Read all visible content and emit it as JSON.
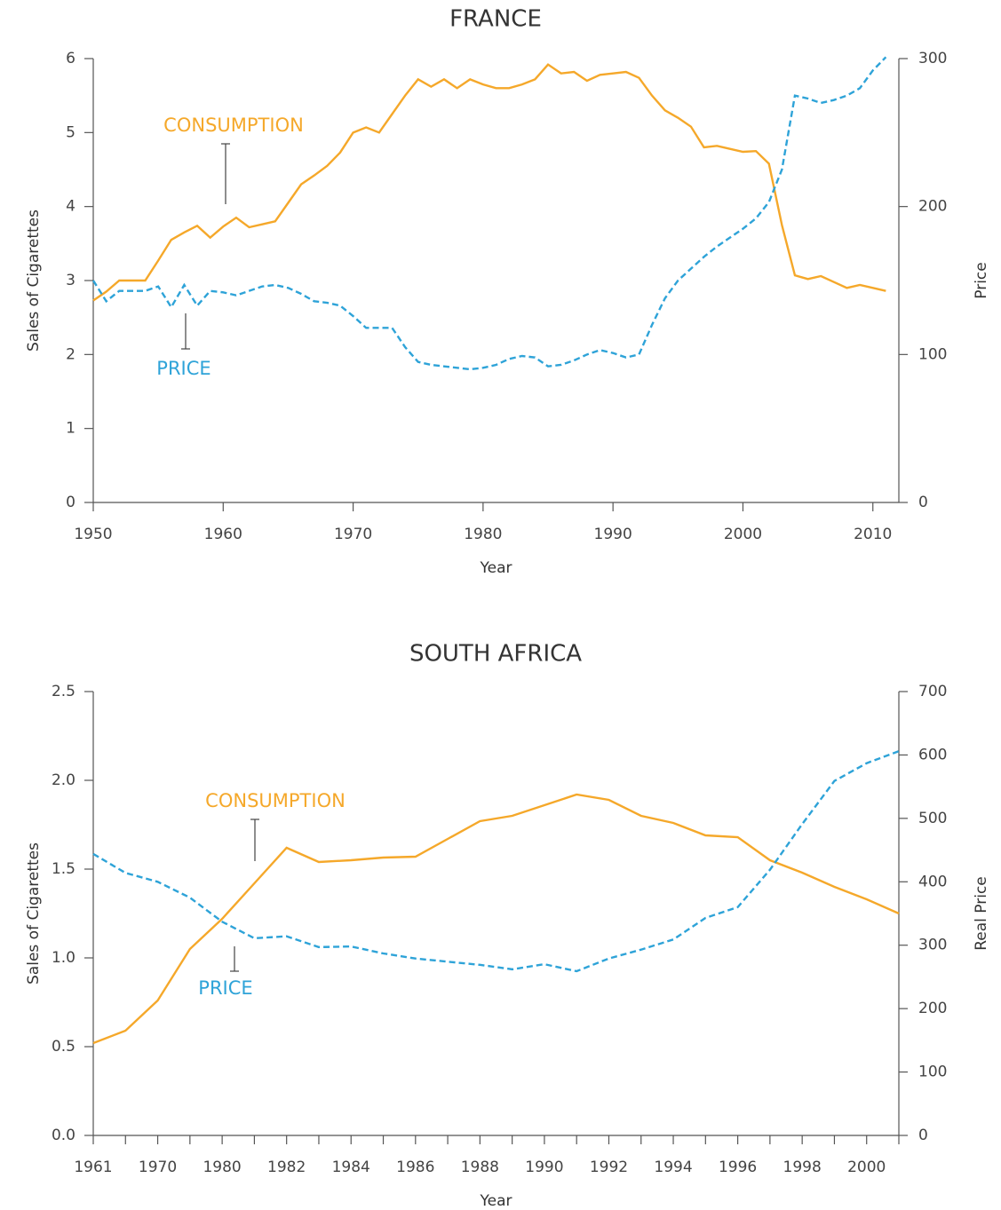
{
  "chart_data": [
    {
      "type": "line",
      "title": "FRANCE",
      "x_label": "Year",
      "y_label": "Sales of Cigarettes",
      "y2_label": "Price",
      "x": [
        1950,
        1951,
        1952,
        1953,
        1954,
        1955,
        1956,
        1957,
        1958,
        1959,
        1960,
        1961,
        1962,
        1963,
        1964,
        1965,
        1966,
        1967,
        1968,
        1969,
        1970,
        1971,
        1972,
        1973,
        1974,
        1975,
        1976,
        1977,
        1978,
        1979,
        1980,
        1981,
        1982,
        1983,
        1984,
        1985,
        1986,
        1987,
        1988,
        1989,
        1990,
        1991,
        1992,
        1993,
        1994,
        1995,
        1996,
        1997,
        1998,
        1999,
        2000,
        2001,
        2002,
        2003,
        2004,
        2005,
        2006,
        2007,
        2008,
        2009,
        2010,
        2011
      ],
      "series": [
        {
          "name": "CONSUMPTION",
          "color": "#f5a82a",
          "line_style": "solid",
          "values": [
            2.73,
            2.85,
            3.0,
            3.0,
            3.0,
            3.27,
            3.55,
            3.65,
            3.74,
            3.58,
            3.73,
            3.85,
            3.72,
            3.76,
            3.8,
            4.05,
            4.3,
            4.42,
            4.55,
            4.73,
            5.0,
            5.07,
            5.0,
            5.25,
            5.5,
            5.72,
            5.62,
            5.72,
            5.6,
            5.72,
            5.65,
            5.6,
            5.6,
            5.65,
            5.72,
            5.92,
            5.8,
            5.82,
            5.7,
            5.78,
            5.8,
            5.82,
            5.74,
            5.5,
            5.3,
            5.2,
            5.08,
            4.8,
            4.82,
            4.78,
            4.74,
            4.75,
            4.58,
            3.75,
            3.07,
            3.02,
            3.06,
            2.98,
            2.9,
            2.94,
            2.9,
            2.86
          ]
        },
        {
          "name": "PRICE",
          "color": "#2ea3d8",
          "line_style": "dashed",
          "axis": "y2",
          "values": [
            150,
            136,
            143,
            143,
            143,
            146,
            132,
            147,
            133,
            143,
            142,
            140,
            143,
            146,
            147,
            145,
            141,
            136,
            135,
            133,
            126,
            118,
            118,
            118,
            105,
            95,
            93,
            92,
            91,
            90,
            91,
            93,
            97,
            99,
            98,
            92,
            93,
            96,
            100,
            103,
            101,
            98,
            100,
            120,
            138,
            150,
            158,
            166,
            173,
            179,
            185,
            192,
            203,
            225,
            275,
            273,
            270,
            272,
            275,
            280,
            292,
            301
          ]
        }
      ],
      "xlim": [
        1950,
        2012
      ],
      "xticks": [
        1950,
        1960,
        1970,
        1980,
        1990,
        2000,
        2010
      ],
      "ylim": [
        0,
        6
      ],
      "yticks": [
        0,
        1,
        2,
        3,
        4,
        5,
        6
      ],
      "y2lim": [
        0,
        300
      ],
      "y2ticks": [
        0,
        100,
        200,
        300
      ],
      "annotations": [
        {
          "text": "CONSUMPTION"
        },
        {
          "text": "PRICE"
        }
      ]
    },
    {
      "type": "line",
      "title": "SOUTH AFRICA",
      "x_label": "Year",
      "y_label": "Sales of Cigarettes",
      "y2_label": "Real Price",
      "categories": [
        "1961",
        null,
        "1970",
        null,
        "1980",
        null,
        "1982",
        null,
        "1984",
        null,
        "1986",
        null,
        "1988",
        null,
        "1990",
        null,
        "1992",
        null,
        "1994",
        null,
        "1996",
        null,
        "1998",
        null,
        "2000",
        null
      ],
      "series": [
        {
          "name": "CONSUMPTION",
          "color": "#f5a82a",
          "line_style": "solid",
          "values": [
            0.52,
            0.59,
            0.76,
            1.05,
            1.22,
            1.42,
            1.62,
            1.54,
            1.55,
            1.565,
            1.57,
            1.67,
            1.77,
            1.8,
            1.86,
            1.92,
            1.89,
            1.8,
            1.76,
            1.69,
            1.68,
            1.55,
            1.48,
            1.4,
            1.33,
            1.25
          ]
        },
        {
          "name": "PRICE",
          "color": "#2ea3d8",
          "line_style": "dashed",
          "axis": "y2",
          "values": [
            444,
            414,
            400,
            375,
            337,
            311,
            314,
            297,
            298,
            287,
            279,
            274,
            269,
            262,
            270,
            259,
            279,
            293,
            309,
            343,
            360,
            419,
            491,
            559,
            587,
            606
          ]
        }
      ],
      "ylim": [
        0,
        2.5
      ],
      "yticks": [
        {
          "value": 0,
          "label": "0.0"
        },
        0.5,
        {
          "value": 1,
          "label": "1.0"
        },
        1.5,
        {
          "value": 2,
          "label": "2.0"
        },
        2.5
      ],
      "y2lim": [
        0,
        700
      ],
      "y2ticks": [
        0,
        100,
        200,
        300,
        400,
        500,
        600,
        700
      ],
      "annotations": [
        {
          "text": "CONSUMPTION"
        },
        {
          "text": "PRICE"
        }
      ]
    }
  ]
}
